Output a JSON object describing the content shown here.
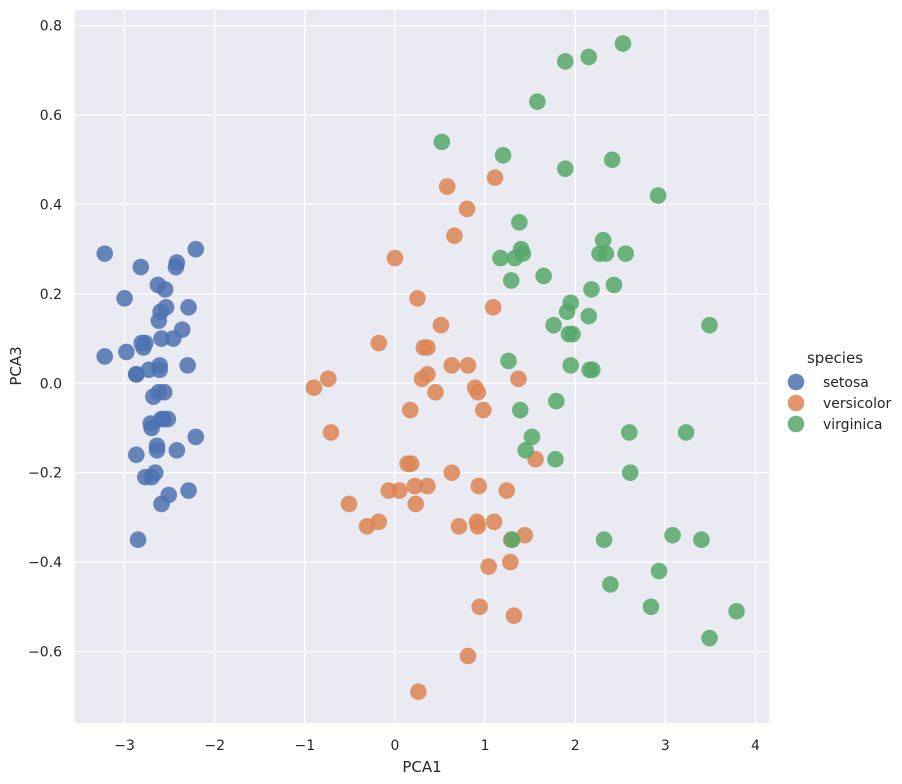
{
  "chart_data": {
    "type": "scatter",
    "title": "",
    "xlabel": "PCA1",
    "ylabel": "PCA3",
    "xlim": [
      -3.55,
      4.15
    ],
    "ylim": [
      -0.76,
      0.835
    ],
    "xticks": [
      -3,
      -2,
      -1,
      0,
      1,
      2,
      3,
      4
    ],
    "xtick_labels": [
      "−3",
      "−2",
      "−1",
      "0",
      "1",
      "2",
      "3",
      "4"
    ],
    "yticks": [
      -0.6,
      -0.4,
      -0.2,
      0.0,
      0.2,
      0.4,
      0.6,
      0.8
    ],
    "ytick_labels": [
      "−0.6",
      "−0.4",
      "−0.2",
      "0.0",
      "0.2",
      "0.4",
      "0.6",
      "0.8"
    ],
    "grid": true,
    "legend_title": "species",
    "legend_position": "center-right-outside",
    "series": [
      {
        "name": "setosa",
        "color": "#4c72b0",
        "points": [
          [
            -3.22,
            0.29
          ],
          [
            -3.22,
            0.06
          ],
          [
            -3.0,
            0.19
          ],
          [
            -2.98,
            0.07
          ],
          [
            -2.87,
            0.02
          ],
          [
            -2.87,
            0.02
          ],
          [
            -2.87,
            -0.16
          ],
          [
            -2.85,
            -0.35
          ],
          [
            -2.82,
            0.26
          ],
          [
            -2.81,
            0.09
          ],
          [
            -2.79,
            0.08
          ],
          [
            -2.77,
            0.09
          ],
          [
            -2.77,
            -0.21
          ],
          [
            -2.73,
            0.03
          ],
          [
            -2.71,
            -0.09
          ],
          [
            -2.7,
            -0.1
          ],
          [
            -2.7,
            -0.21
          ],
          [
            -2.68,
            -0.03
          ],
          [
            -2.66,
            -0.2
          ],
          [
            -2.64,
            -0.15
          ],
          [
            -2.64,
            -0.14
          ],
          [
            -2.63,
            0.22
          ],
          [
            -2.62,
            0.14
          ],
          [
            -2.62,
            -0.02
          ],
          [
            -2.61,
            0.04
          ],
          [
            -2.61,
            0.03
          ],
          [
            -2.6,
            0.16
          ],
          [
            -2.59,
            0.1
          ],
          [
            -2.59,
            -0.08
          ],
          [
            -2.59,
            -0.27
          ],
          [
            -2.57,
            -0.08
          ],
          [
            -2.56,
            -0.02
          ],
          [
            -2.55,
            0.21
          ],
          [
            -2.54,
            0.17
          ],
          [
            -2.52,
            -0.08
          ],
          [
            -2.51,
            -0.25
          ],
          [
            -2.46,
            0.1
          ],
          [
            -2.43,
            0.26
          ],
          [
            -2.42,
            0.27
          ],
          [
            -2.42,
            -0.15
          ],
          [
            -2.36,
            0.12
          ],
          [
            -2.3,
            0.04
          ],
          [
            -2.29,
            0.17
          ],
          [
            -2.29,
            -0.24
          ],
          [
            -2.21,
            0.3
          ],
          [
            -2.21,
            -0.12
          ]
        ]
      },
      {
        "name": "versicolor",
        "color": "#dd8452",
        "points": [
          [
            -0.9,
            -0.01
          ],
          [
            -0.74,
            0.01
          ],
          [
            -0.71,
            -0.11
          ],
          [
            -0.51,
            -0.27
          ],
          [
            -0.31,
            -0.32
          ],
          [
            -0.18,
            0.09
          ],
          [
            -0.18,
            -0.31
          ],
          [
            -0.07,
            -0.24
          ],
          [
            0.0,
            0.28
          ],
          [
            0.05,
            -0.24
          ],
          [
            0.14,
            -0.18
          ],
          [
            0.17,
            -0.06
          ],
          [
            0.18,
            -0.18
          ],
          [
            0.22,
            -0.23
          ],
          [
            0.23,
            -0.27
          ],
          [
            0.25,
            0.19
          ],
          [
            0.26,
            -0.69
          ],
          [
            0.3,
            0.01
          ],
          [
            0.32,
            0.08
          ],
          [
            0.36,
            0.08
          ],
          [
            0.36,
            0.02
          ],
          [
            0.36,
            -0.23
          ],
          [
            0.45,
            -0.02
          ],
          [
            0.51,
            0.13
          ],
          [
            0.58,
            0.44
          ],
          [
            0.63,
            0.04
          ],
          [
            0.63,
            -0.2
          ],
          [
            0.66,
            0.33
          ],
          [
            0.71,
            -0.32
          ],
          [
            0.8,
            0.39
          ],
          [
            0.81,
            0.04
          ],
          [
            0.81,
            -0.61
          ],
          [
            0.89,
            -0.01
          ],
          [
            0.91,
            -0.31
          ],
          [
            0.92,
            -0.02
          ],
          [
            0.92,
            -0.32
          ],
          [
            0.93,
            -0.23
          ],
          [
            0.94,
            -0.5
          ],
          [
            0.98,
            -0.06
          ],
          [
            1.04,
            -0.41
          ],
          [
            1.09,
            0.17
          ],
          [
            1.1,
            -0.31
          ],
          [
            1.11,
            0.46
          ],
          [
            1.24,
            -0.24
          ],
          [
            1.28,
            -0.4
          ],
          [
            1.29,
            -0.35
          ],
          [
            1.32,
            -0.52
          ],
          [
            1.37,
            0.01
          ],
          [
            1.44,
            -0.34
          ],
          [
            1.56,
            -0.17
          ]
        ]
      },
      {
        "name": "virginica",
        "color": "#55a868",
        "points": [
          [
            0.52,
            0.54
          ],
          [
            1.17,
            0.28
          ],
          [
            1.2,
            0.51
          ],
          [
            1.26,
            0.05
          ],
          [
            1.29,
            0.23
          ],
          [
            1.3,
            -0.35
          ],
          [
            1.33,
            0.28
          ],
          [
            1.38,
            0.36
          ],
          [
            1.39,
            -0.06
          ],
          [
            1.4,
            0.3
          ],
          [
            1.42,
            0.29
          ],
          [
            1.45,
            -0.15
          ],
          [
            1.52,
            -0.12
          ],
          [
            1.58,
            0.63
          ],
          [
            1.65,
            0.24
          ],
          [
            1.76,
            0.13
          ],
          [
            1.78,
            -0.17
          ],
          [
            1.79,
            -0.04
          ],
          [
            1.89,
            0.72
          ],
          [
            1.89,
            0.48
          ],
          [
            1.91,
            0.16
          ],
          [
            1.93,
            0.11
          ],
          [
            1.95,
            0.18
          ],
          [
            1.95,
            0.04
          ],
          [
            1.97,
            0.11
          ],
          [
            2.15,
            0.15
          ],
          [
            2.15,
            0.73
          ],
          [
            2.16,
            0.03
          ],
          [
            2.18,
            0.21
          ],
          [
            2.19,
            0.03
          ],
          [
            2.27,
            0.29
          ],
          [
            2.31,
            0.32
          ],
          [
            2.32,
            -0.35
          ],
          [
            2.34,
            0.29
          ],
          [
            2.39,
            -0.45
          ],
          [
            2.41,
            0.5
          ],
          [
            2.43,
            0.22
          ],
          [
            2.53,
            0.76
          ],
          [
            2.56,
            0.29
          ],
          [
            2.6,
            -0.11
          ],
          [
            2.61,
            -0.2
          ],
          [
            2.84,
            -0.5
          ],
          [
            2.92,
            0.42
          ],
          [
            2.93,
            -0.42
          ],
          [
            3.08,
            -0.34
          ],
          [
            3.23,
            -0.11
          ],
          [
            3.4,
            -0.35
          ],
          [
            3.49,
            0.13
          ],
          [
            3.49,
            -0.57
          ],
          [
            3.79,
            -0.51
          ]
        ]
      }
    ]
  }
}
